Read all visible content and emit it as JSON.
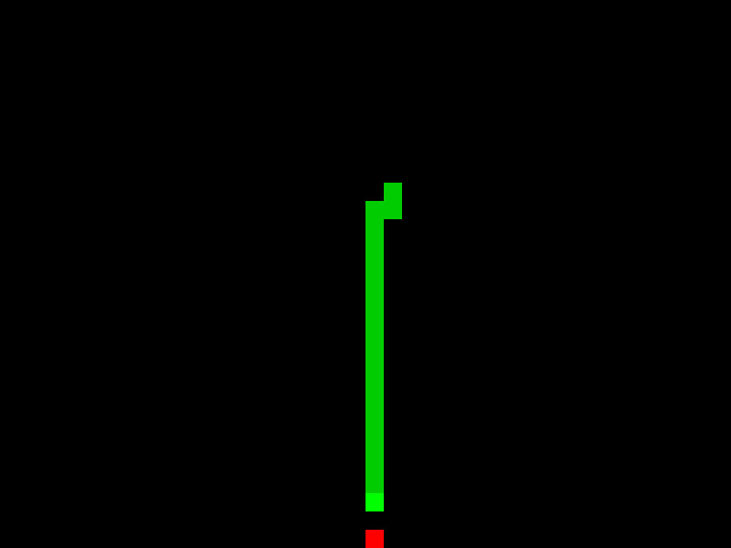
{
  "game": {
    "type": "snake",
    "grid": {
      "columns": 40,
      "rows": 30
    },
    "colors": {
      "background": "#000000",
      "snake_body": "#00cc00",
      "snake_head": "#00ff00",
      "food": "#ff0000"
    },
    "snake": {
      "head": [
        20,
        27
      ],
      "body": [
        [
          20,
          26
        ],
        [
          20,
          25
        ],
        [
          20,
          24
        ],
        [
          20,
          23
        ],
        [
          20,
          22
        ],
        [
          20,
          21
        ],
        [
          20,
          20
        ],
        [
          20,
          19
        ],
        [
          20,
          18
        ],
        [
          20,
          17
        ],
        [
          20,
          16
        ],
        [
          20,
          15
        ],
        [
          20,
          14
        ],
        [
          20,
          13
        ],
        [
          20,
          12
        ],
        [
          20,
          11
        ],
        [
          21,
          11
        ],
        [
          21,
          10
        ]
      ]
    },
    "food": [
      20,
      29
    ]
  }
}
